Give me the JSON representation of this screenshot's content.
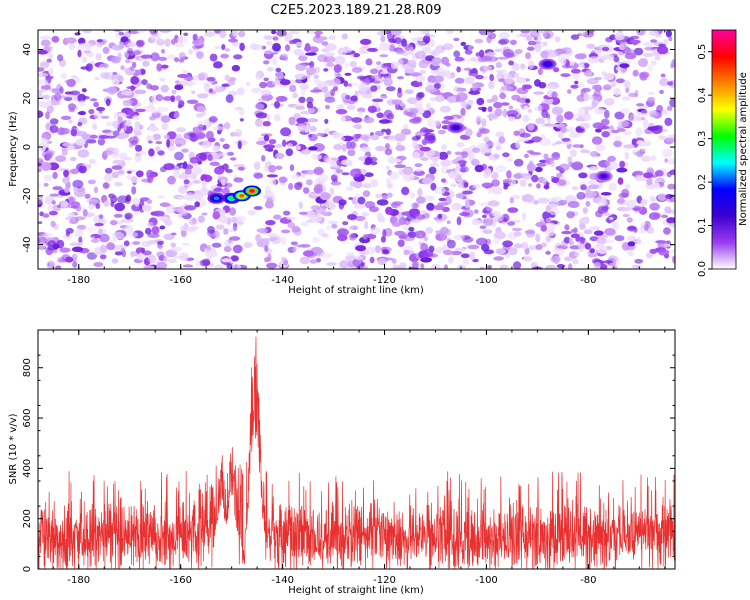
{
  "title": "C2E5.2023.189.21.28.R09",
  "chart_data": [
    {
      "type": "heatmap",
      "xlabel": "Height of straight line (km)",
      "ylabel": "Frequency (Hz)",
      "xlim": [
        -188,
        -63
      ],
      "ylim": [
        -50,
        48
      ],
      "xticks": [
        -180,
        -160,
        -140,
        -120,
        -100,
        -80
      ],
      "yticks": [
        -40,
        -20,
        0,
        20,
        40
      ],
      "colorbar": {
        "label": "Normalized spectral amplitude",
        "range": [
          0.0,
          0.55
        ],
        "ticks": [
          0.0,
          0.1,
          0.2,
          0.3,
          0.4,
          0.5
        ],
        "colormap": [
          "#ffffff",
          "#9a3cf0",
          "#3c00d0",
          "#0000ff",
          "#00ffff",
          "#00ff00",
          "#ffff00",
          "#ff8000",
          "#ff0000",
          "#ff00a0"
        ]
      },
      "background_level": 0.05,
      "gap_x": [
        -148,
        -145
      ],
      "hotspots": [
        {
          "x": -153,
          "y": -21,
          "value": 0.22
        },
        {
          "x": -150,
          "y": -21,
          "value": 0.3
        },
        {
          "x": -148,
          "y": -20,
          "value": 0.45
        },
        {
          "x": -146,
          "y": -18,
          "value": 0.52
        },
        {
          "x": -106,
          "y": 8,
          "value": 0.14
        },
        {
          "x": -88,
          "y": 34,
          "value": 0.15
        },
        {
          "x": -77,
          "y": -12,
          "value": 0.12
        }
      ]
    },
    {
      "type": "line",
      "xlabel": "Height of straight line (km)",
      "ylabel": "SNR (10 * v/v)",
      "xlim": [
        -188,
        -63
      ],
      "ylim": [
        0,
        950
      ],
      "xticks": [
        -180,
        -160,
        -140,
        -120,
        -100,
        -80
      ],
      "yticks": [
        0,
        200,
        400,
        600,
        800
      ],
      "color": "#e83030",
      "noise": {
        "baseline": 130,
        "typical_max": 300,
        "min": 0
      },
      "peaks": [
        {
          "x": -152,
          "y": 480
        },
        {
          "x": -150,
          "y": 530
        },
        {
          "x": -146,
          "y": 820
        },
        {
          "x": -145.3,
          "y": 940
        },
        {
          "x": -144.8,
          "y": 760
        }
      ],
      "gap_x": [
        -148,
        -145
      ]
    }
  ]
}
